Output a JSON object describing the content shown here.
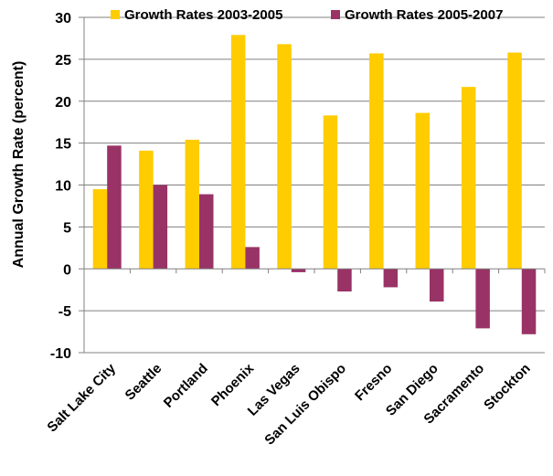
{
  "chart_data": {
    "type": "bar",
    "title": "",
    "xlabel": "",
    "ylabel": "Annual Growth Rate (percent)",
    "ylim": [
      -10,
      30
    ],
    "yticks": [
      30,
      25,
      20,
      15,
      10,
      5,
      0,
      -5,
      -10
    ],
    "grid": true,
    "legend_position": "top",
    "categories": [
      "Salt Lake City",
      "Seattle",
      "Portland",
      "Phoenix",
      "Las Vegas",
      "San Luis Obispo",
      "Fresno",
      "San Diego",
      "Sacramento",
      "Stockton"
    ],
    "series": [
      {
        "name": "Growth Rates 2003-2005",
        "color": "#FFCC00",
        "values": [
          9.5,
          14.1,
          15.4,
          27.9,
          26.8,
          18.3,
          25.7,
          18.6,
          21.7,
          25.8
        ]
      },
      {
        "name": "Growth Rates 2005-2007",
        "color": "#993366",
        "values": [
          14.7,
          10.0,
          8.9,
          2.6,
          -0.4,
          -2.7,
          -2.2,
          -3.9,
          -7.1,
          -7.8
        ]
      }
    ]
  }
}
